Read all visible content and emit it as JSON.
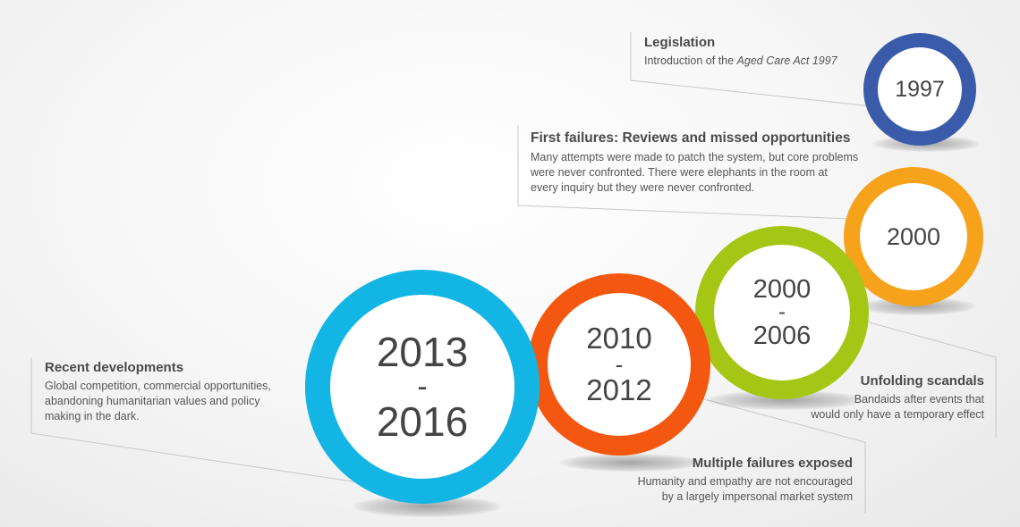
{
  "milestones": [
    {
      "id": "m1997",
      "year_top": "1997",
      "color": "#3a5ba9"
    },
    {
      "id": "m2000",
      "year_top": "2000",
      "color": "#f7a21b"
    },
    {
      "id": "m2000-2006",
      "year_top": "2000",
      "sep": "-",
      "year_bottom": "2006",
      "color": "#a6c615"
    },
    {
      "id": "m2010-2012",
      "year_top": "2010",
      "sep": "-",
      "year_bottom": "2012",
      "color": "#f4570f"
    },
    {
      "id": "m2013-2016",
      "year_top": "2013",
      "sep": "-",
      "year_bottom": "2016",
      "color": "#12b5e3"
    }
  ],
  "callouts": {
    "legislation": {
      "heading": "Legislation",
      "text_prefix": "Introduction of the ",
      "text_emphasis": "Aged Care Act 1997"
    },
    "first_failures": {
      "heading": "First failures: Reviews and missed opportunities",
      "lines": [
        "Many attempts were made to patch the system, but core problems",
        "were never confronted. There were elephants in the room at",
        "every inquiry but they were never confronted."
      ]
    },
    "unfolding": {
      "heading": "Unfolding scandals",
      "lines": [
        "Bandaids after events that",
        "would only have a temporary effect"
      ]
    },
    "multiple": {
      "heading": "Multiple failures exposed",
      "lines": [
        "Humanity and empathy are not encouraged",
        "by a largely impersonal market system"
      ]
    },
    "recent": {
      "heading": "Recent developments",
      "lines": [
        "Global competition, commercial opportunities,",
        "abandoning humanitarian values and policy",
        "making in the dark."
      ]
    }
  }
}
